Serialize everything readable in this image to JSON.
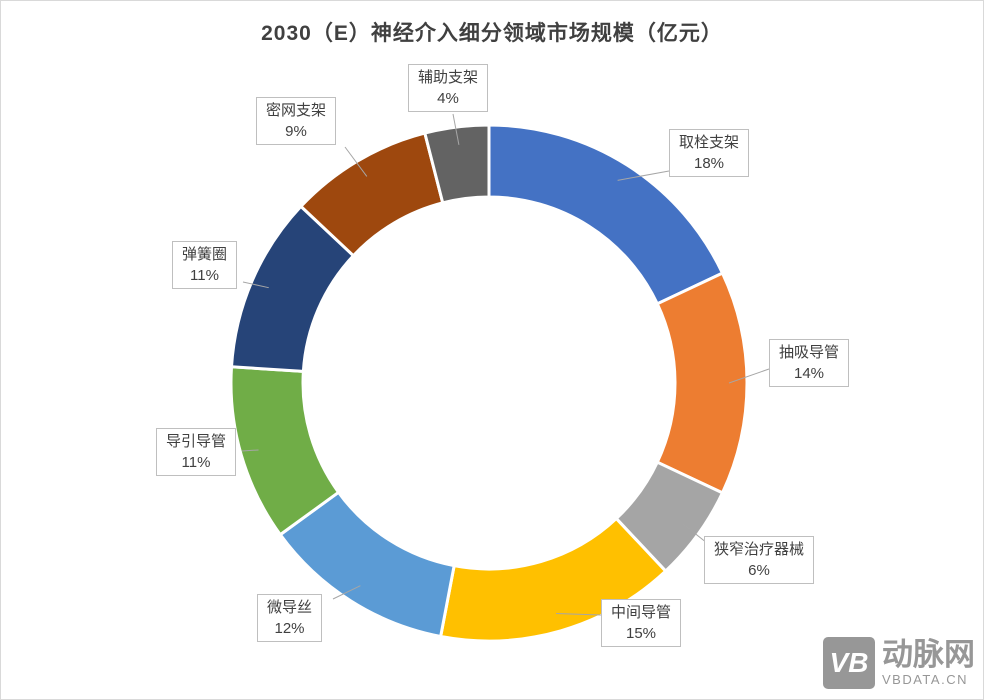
{
  "page": {
    "title": "2030（E）神经介入细分领域市场规模（亿元）"
  },
  "watermark": {
    "logo_text": "VB",
    "brand": "动脉网",
    "domain": "VBDATA.CN"
  },
  "chart_data": {
    "type": "pie",
    "variant": "donut",
    "title": "2030（E）神经介入细分领域市场规模（亿元）",
    "start_angle_deg": 0,
    "direction": "clockwise",
    "inner_radius_ratio": 0.72,
    "legend": "none",
    "label_style": "callout boxes with leader lines, name + percent",
    "categories": [
      "取栓支架",
      "抽吸导管",
      "狭窄治疗器械",
      "中间导管",
      "微导丝",
      "导引导管",
      "弹簧圈",
      "密网支架",
      "辅助支架"
    ],
    "values": [
      18,
      14,
      6,
      15,
      12,
      11,
      11,
      9,
      4
    ],
    "slices": [
      {
        "name": "取栓支架",
        "value": 18,
        "pct": "18%",
        "color": "#4472C4"
      },
      {
        "name": "抽吸导管",
        "value": 14,
        "pct": "14%",
        "color": "#ED7D31"
      },
      {
        "name": "狭窄治疗器械",
        "value": 6,
        "pct": "6%",
        "color": "#A5A5A5"
      },
      {
        "name": "中间导管",
        "value": 15,
        "pct": "15%",
        "color": "#FFC000"
      },
      {
        "name": "微导丝",
        "value": 12,
        "pct": "12%",
        "color": "#5B9BD5"
      },
      {
        "name": "导引导管",
        "value": 11,
        "pct": "11%",
        "color": "#70AD47"
      },
      {
        "name": "弹簧圈",
        "value": 11,
        "pct": "11%",
        "color": "#264478"
      },
      {
        "name": "密网支架",
        "value": 9,
        "pct": "9%",
        "color": "#9E480E"
      },
      {
        "name": "辅助支架",
        "value": 4,
        "pct": "4%",
        "color": "#636363"
      }
    ]
  }
}
